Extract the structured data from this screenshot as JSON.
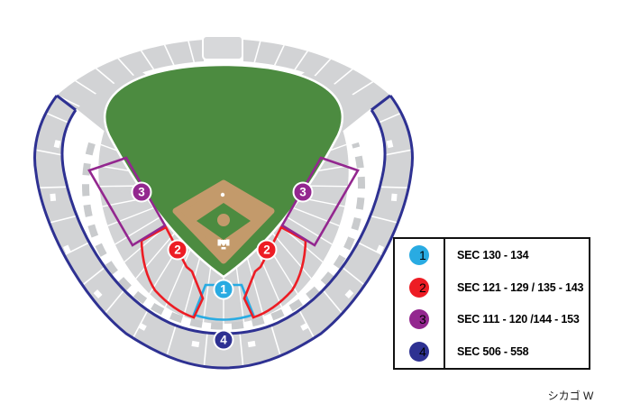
{
  "legend": {
    "items": [
      {
        "number": "1",
        "label": "SEC 130 - 134",
        "color": "#29ABE2"
      },
      {
        "number": "2",
        "label": "SEC 121 - 129 / 135 - 143",
        "color": "#ED1C24"
      },
      {
        "number": "3",
        "label": "SEC 111 - 120 /144 - 153",
        "color": "#93278F"
      },
      {
        "number": "4",
        "label": "SEC 506 - 558",
        "color": "#2E3192"
      }
    ]
  },
  "stadium": {
    "markers": [
      {
        "number": "3",
        "color": "#93278F"
      },
      {
        "number": "3",
        "color": "#93278F"
      },
      {
        "number": "2",
        "color": "#ED1C24"
      },
      {
        "number": "2",
        "color": "#ED1C24"
      },
      {
        "number": "1",
        "color": "#29ABE2"
      },
      {
        "number": "4",
        "color": "#2E3192"
      }
    ]
  },
  "caption": "シカゴ W",
  "colors": {
    "field_green": "#4C8B40",
    "infield_tan": "#C39A6B",
    "seats_gray": "#D2D3D5",
    "scoreboard_gray": "#D7D8DA",
    "walkway_gray": "#C9CBCD",
    "upper_deck_outline": "#2E3192",
    "legend_border": "#111111"
  }
}
